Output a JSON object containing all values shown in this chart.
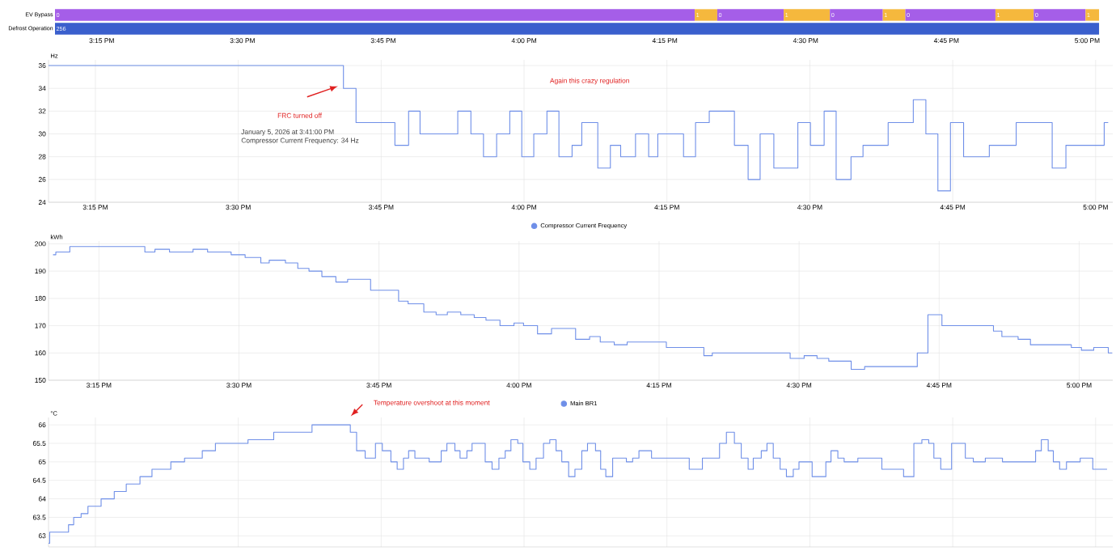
{
  "chart_data": [
    {
      "type": "bar",
      "orientation": "horizontal",
      "categories": [
        "EV Bypass",
        "Defrost Operation"
      ],
      "series": [
        {
          "color": "#a55ee8",
          "base": [
            15.167,
            null
          ],
          "values": [
            1.136,
            null
          ]
        },
        {
          "color": "#f5b83d",
          "base": [
            16.303,
            null
          ],
          "values": [
            0.04,
            null
          ]
        },
        {
          "color": "#a55ee8",
          "base": [
            16.343,
            null
          ],
          "values": [
            0.118,
            null
          ]
        },
        {
          "color": "#f5b83d",
          "base": [
            16.461,
            null
          ],
          "values": [
            0.082,
            null
          ]
        },
        {
          "color": "#a55ee8",
          "base": [
            16.543,
            null
          ],
          "values": [
            0.094,
            null
          ]
        },
        {
          "color": "#f5b83d",
          "base": [
            16.637,
            null
          ],
          "values": [
            0.04,
            null
          ]
        },
        {
          "color": "#a55ee8",
          "base": [
            16.677,
            null
          ],
          "values": [
            0.16,
            null
          ]
        },
        {
          "color": "#f5b83d",
          "base": [
            16.837,
            null
          ],
          "values": [
            0.068,
            null
          ]
        },
        {
          "color": "#a55ee8",
          "base": [
            16.905,
            null
          ],
          "values": [
            0.092,
            null
          ]
        },
        {
          "color": "#f5b83d",
          "base": [
            16.997,
            null
          ],
          "values": [
            0.024,
            null
          ]
        },
        {
          "color": "#3a5fcd",
          "base": [
            null,
            15.167
          ],
          "values": [
            null,
            1.854
          ]
        }
      ],
      "annotations": [
        {
          "text": "0",
          "x": 15.167,
          "y": "EV Bypass"
        },
        {
          "text": "1",
          "x": 16.303,
          "y": "EV Bypass"
        },
        {
          "text": "0",
          "x": 16.343,
          "y": "EV Bypass"
        },
        {
          "text": "1",
          "x": 16.461,
          "y": "EV Bypass"
        },
        {
          "text": "0",
          "x": 16.543,
          "y": "EV Bypass"
        },
        {
          "text": "1",
          "x": 16.637,
          "y": "EV Bypass"
        },
        {
          "text": "0",
          "x": 16.677,
          "y": "EV Bypass"
        },
        {
          "text": "1",
          "x": 16.837,
          "y": "EV Bypass"
        },
        {
          "text": "0",
          "x": 16.905,
          "y": "EV Bypass"
        },
        {
          "text": "1",
          "x": 16.997,
          "y": "EV Bypass"
        },
        {
          "text": "256",
          "x": 15.167,
          "y": "Defrost Operation"
        }
      ],
      "xlim": [
        15.167,
        17.031
      ],
      "xticks": [
        {
          "value": 15.25,
          "label": "3:15 PM"
        },
        {
          "value": 15.5,
          "label": "3:30 PM"
        },
        {
          "value": 15.75,
          "label": "3:45 PM"
        },
        {
          "value": 16,
          "label": "4:00 PM"
        },
        {
          "value": 16.25,
          "label": "4:15 PM"
        },
        {
          "value": 16.5,
          "label": "4:30 PM"
        },
        {
          "value": 16.75,
          "label": "4:45 PM"
        },
        {
          "value": 17,
          "label": "5:00 PM"
        }
      ]
    },
    {
      "type": "step",
      "ylabel": "Hz",
      "grid": true,
      "legend": "bottom",
      "marker": "none",
      "x": [
        15.168,
        15.684,
        15.706,
        15.774,
        15.798,
        15.818,
        15.884,
        15.907,
        15.929,
        15.952,
        15.975,
        15.996,
        16.017,
        16.04,
        16.061,
        16.084,
        16.101,
        16.129,
        16.151,
        16.169,
        16.195,
        16.218,
        16.234,
        16.279,
        16.3,
        16.324,
        16.368,
        16.392,
        16.413,
        16.437,
        16.479,
        16.501,
        16.525,
        16.546,
        16.572,
        16.593,
        16.637,
        16.681,
        16.703,
        16.724,
        16.746,
        16.769,
        16.814,
        16.861,
        16.924,
        16.948,
        17.015,
        17.022
      ],
      "series": [
        {
          "name": "Compressor Current Frequency",
          "color": "#6f8fe8",
          "values": [
            36,
            34,
            31,
            29,
            32,
            30,
            32,
            30,
            28,
            30,
            32,
            28,
            30,
            32,
            28,
            29,
            31,
            27,
            29,
            28,
            30,
            28,
            30,
            28,
            31,
            32,
            29,
            26,
            30,
            27,
            31,
            29,
            32,
            26,
            28,
            29,
            31,
            33,
            30,
            25,
            31,
            28,
            29,
            31,
            27,
            29,
            31,
            31
          ]
        }
      ],
      "xlim": [
        15.168,
        17.03
      ],
      "ylim": [
        24,
        36.5
      ],
      "xticks": [
        {
          "value": 15.25,
          "label": "3:15 PM"
        },
        {
          "value": 15.5,
          "label": "3:30 PM"
        },
        {
          "value": 15.75,
          "label": "3:45 PM"
        },
        {
          "value": 16,
          "label": "4:00 PM"
        },
        {
          "value": 16.25,
          "label": "4:15 PM"
        },
        {
          "value": 16.5,
          "label": "4:30 PM"
        },
        {
          "value": 16.75,
          "label": "4:45 PM"
        },
        {
          "value": 17,
          "label": "5:00 PM"
        }
      ],
      "yticks": [
        24,
        26,
        28,
        30,
        32,
        34,
        36
      ],
      "annotations": [
        "FRC turned off",
        "Again this crazy regulation",
        "January 5, 2026 at 3:41:00 PM",
        "Compressor Current Frequency: 34 Hz"
      ]
    },
    {
      "type": "step",
      "ylabel": "kWh",
      "grid": true,
      "legend": "bottom",
      "marker": "none",
      "x": [
        15.168,
        15.173,
        15.198,
        15.332,
        15.35,
        15.376,
        15.418,
        15.444,
        15.486,
        15.511,
        15.539,
        15.554,
        15.583,
        15.605,
        15.625,
        15.648,
        15.673,
        15.694,
        15.735,
        15.785,
        15.802,
        15.83,
        15.852,
        15.872,
        15.896,
        15.92,
        15.941,
        15.966,
        15.991,
        16.008,
        16.033,
        16.058,
        16.101,
        16.126,
        16.145,
        16.17,
        16.193,
        16.263,
        16.33,
        16.345,
        16.484,
        16.509,
        16.532,
        16.553,
        16.593,
        16.617,
        16.711,
        16.73,
        16.755,
        16.847,
        16.862,
        16.891,
        16.913,
        16.986,
        17.004,
        17.026,
        17.052,
        17.059
      ],
      "series": [
        {
          "name": "Main BR1",
          "color": "#6f8fe8",
          "values": [
            196,
            197,
            199,
            197,
            198,
            197,
            198,
            197,
            196,
            195,
            193,
            194,
            193,
            191,
            190,
            188,
            186,
            187,
            183,
            179,
            178,
            175,
            174,
            175,
            174,
            173,
            172,
            170,
            171,
            170,
            167,
            169,
            165,
            166,
            164,
            163,
            164,
            162,
            159,
            160,
            158,
            159,
            158,
            157,
            154,
            155,
            160,
            174,
            170,
            168,
            166,
            165,
            163,
            162,
            161,
            162,
            160,
            160
          ]
        }
      ],
      "xlim": [
        15.16,
        17.06
      ],
      "ylim": [
        150,
        201
      ],
      "xticks": [
        {
          "value": 15.25,
          "label": "3:15 PM"
        },
        {
          "value": 15.5,
          "label": "3:30 PM"
        },
        {
          "value": 15.75,
          "label": "3:45 PM"
        },
        {
          "value": 16,
          "label": "4:00 PM"
        },
        {
          "value": 16.25,
          "label": "4:15 PM"
        },
        {
          "value": 16.5,
          "label": "4:30 PM"
        },
        {
          "value": 16.75,
          "label": "4:45 PM"
        },
        {
          "value": 17,
          "label": "5:00 PM"
        }
      ],
      "yticks": [
        150,
        160,
        170,
        180,
        190,
        200
      ]
    },
    {
      "type": "step",
      "ylabel": "°C",
      "grid": true,
      "marker": "none",
      "tick_labels": "y",
      "x": [
        15.168,
        15.17,
        15.203,
        15.212,
        15.225,
        15.237,
        15.26,
        15.283,
        15.304,
        15.328,
        15.349,
        15.382,
        15.406,
        15.437,
        15.46,
        15.517,
        15.562,
        15.629,
        15.696,
        15.707,
        15.722,
        15.74,
        15.752,
        15.767,
        15.778,
        15.789,
        15.798,
        15.809,
        15.834,
        15.855,
        15.865,
        15.879,
        15.888,
        15.9,
        15.909,
        15.932,
        15.944,
        15.956,
        15.967,
        15.977,
        15.989,
        15.998,
        16.01,
        16.021,
        16.034,
        16.045,
        16.056,
        16.066,
        16.078,
        16.089,
        16.101,
        16.111,
        16.125,
        16.134,
        16.143,
        16.155,
        16.179,
        16.19,
        16.201,
        16.223,
        16.289,
        16.312,
        16.342,
        16.354,
        16.368,
        16.38,
        16.392,
        16.401,
        16.415,
        16.425,
        16.436,
        16.448,
        16.459,
        16.471,
        16.481,
        16.504,
        16.528,
        16.537,
        16.549,
        16.56,
        16.584,
        16.626,
        16.664,
        16.682,
        16.696,
        16.708,
        16.717,
        16.729,
        16.748,
        16.772,
        16.786,
        16.807,
        16.837,
        16.895,
        16.905,
        16.917,
        16.926,
        16.937,
        16.949,
        16.973,
        16.995,
        17.02
      ],
      "series": [
        {
          "color": "#6f8fe8",
          "values": [
            62.8,
            63.1,
            63.3,
            63.5,
            63.6,
            63.8,
            64.0,
            64.2,
            64.4,
            64.6,
            64.8,
            65.0,
            65.1,
            65.3,
            65.5,
            65.6,
            65.8,
            66.0,
            65.8,
            65.3,
            65.1,
            65.5,
            65.3,
            65.0,
            64.8,
            65.1,
            65.3,
            65.1,
            65.0,
            65.3,
            65.5,
            65.3,
            65.1,
            65.3,
            65.5,
            65.0,
            64.8,
            65.1,
            65.3,
            65.6,
            65.5,
            65.0,
            64.8,
            65.1,
            65.5,
            65.6,
            65.3,
            65.0,
            64.6,
            64.8,
            65.3,
            65.5,
            65.3,
            64.8,
            64.6,
            65.1,
            65.0,
            65.1,
            65.3,
            65.1,
            64.8,
            65.1,
            65.5,
            65.8,
            65.5,
            65.1,
            64.8,
            65.1,
            65.3,
            65.5,
            65.1,
            64.8,
            64.6,
            64.8,
            65.0,
            64.6,
            65.0,
            65.3,
            65.1,
            65.0,
            65.1,
            64.8,
            64.6,
            65.5,
            65.6,
            65.5,
            65.1,
            64.8,
            65.5,
            65.1,
            65.0,
            65.1,
            65.0,
            65.3,
            65.6,
            65.3,
            65.0,
            64.8,
            65.0,
            65.1,
            64.8,
            64.8
          ]
        }
      ],
      "xlim": [
        15.168,
        17.03
      ],
      "ylim": [
        62.7,
        66.2
      ],
      "xticks": [
        {
          "value": 15.25,
          "label": null
        },
        {
          "value": 15.5,
          "label": null
        },
        {
          "value": 15.75,
          "label": null
        },
        {
          "value": 16,
          "label": null
        },
        {
          "value": 16.25,
          "label": null
        },
        {
          "value": 16.5,
          "label": null
        },
        {
          "value": 16.75,
          "label": null
        },
        {
          "value": 17,
          "label": null
        }
      ],
      "yticks": [
        63,
        63.5,
        64,
        64.5,
        65,
        65.5,
        66
      ],
      "annotations": [
        "Temperature overshoot at this moment"
      ]
    }
  ]
}
